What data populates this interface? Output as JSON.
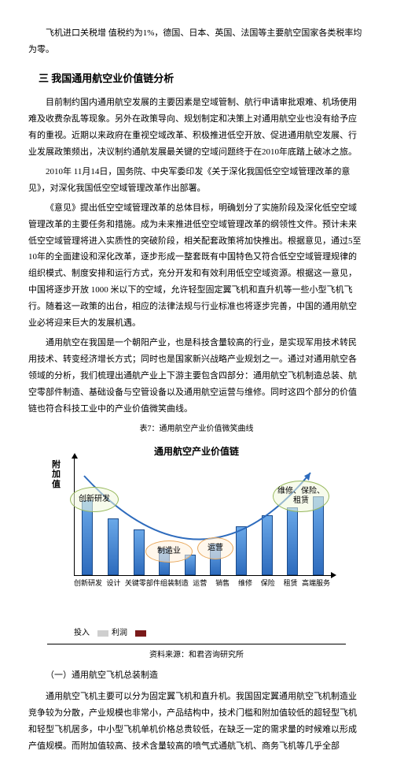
{
  "intro": "飞机进口关税增 值税约为1%，德国、日本、英国、法国等主要航空国家各类税率均为零。",
  "section3_title": "三  我国通用航空业价值链分析",
  "p1": "目前制约国内通用航空发展的主要因素是空域管制、航行申请审批艰难、机场使用难及收费杂乱等现象。另外在政策导向、规划制定和决策上对通用航空业也没有给予应有的重视。近期以来政府在重视空域改革、积极推进低空开放、促进通用航空发展、行业发展政策频出，决议制约通航发展最关键的空域问题终于在2010年底踏上破冰之旅。",
  "p2": "2010年 11月14日，国务院、中央军委印发《关于深化我国低空空域管理改革的意见》，对深化我国低空空域管理改革作出部署。",
  "p3": "《意见》提出低空空域管理改革的总体目标，明确划分了实施阶段及深化低空空域管理改革的主要任务和措施。成为未来推进低空空域管理改革的纲领性文件。预计未来低空空域管理将进入实质性的突破阶段，相关配套政策将加快推出。根据意见，通过5至10年的全面建设和深化改革，逐步形成一整套既有中国特色又符合低空空域管理规律的组织模式、制度安排和运行方式，充分开发和有效利用低空空域资源。根据这一意见，中国将逐步开放 1000 米以下的空域，允许轻型固定翼飞机和直升机等一些小型飞机飞行。随着这一政策的出台，相应的法律法规与行业标准也将逐步完善，中国的通用航空业必将迎来巨大的发展机遇。",
  "p4": "通用航空在我国是一个朝阳产业，也是科技含量较高的行业，是实现军用技术转民用技术、转变经济增长方式；同时也是国家新兴战略产业规划之一。通过对通用航空各领域的分析，我们梳理出通航产业上下游主要包含四部分：通用航空飞机制造总装、航空零部件制造、基础设备与空管设备以及通用航空运营与维修。同时这四个部分的价值链也符合科技工业中的产业价值微笑曲线。",
  "chart_caption": "表7：通用航空产业价值微笑曲线",
  "chart": {
    "title": "通用航空产业价值链",
    "ylabel": "附加值",
    "bubbles": {
      "innovation": "创新研发",
      "manufacturing": "制造业",
      "operation": "运营",
      "service": "维修、保险、租赁"
    },
    "xticks": [
      "创新研发",
      "设计",
      "关键零部件",
      "组装制造",
      "运营",
      "销售",
      "维修",
      "保险",
      "租赁",
      "高端服务"
    ],
    "bars": [
      95,
      72,
      58,
      34,
      26,
      40,
      62,
      76,
      86,
      100
    ],
    "bar_color_top": "#6aa8e8",
    "bar_color_bottom": "#2d6bbd",
    "bubble_border_green": "#97b85c",
    "bubble_border_orange": "#e8a85c",
    "smile_color": "#2d6bbd",
    "legend": {
      "input": "投入",
      "profit": "利润",
      "profit_color": "#7a1a1a",
      "input_color": "#cfcfcf"
    }
  },
  "chart_source": "资料来源：和君咨询研究所",
  "sub1_title": "（一）通用航空飞机总装制造",
  "p5": "通用航空飞机主要可以分为固定翼飞机和直升机。我国固定翼通用航空飞机制造业竞争较为分散，产业规模也非常小，产品结构中，技术门槛和附加值较低的超轻型飞机和轻型飞机居多，中小型飞机单机价格总贵较低，在缺乏一定的需求量的时候难以形成产值规模。而附加值较高、技术含量较高的喷气式通航飞机、商务飞机等几乎全部"
}
